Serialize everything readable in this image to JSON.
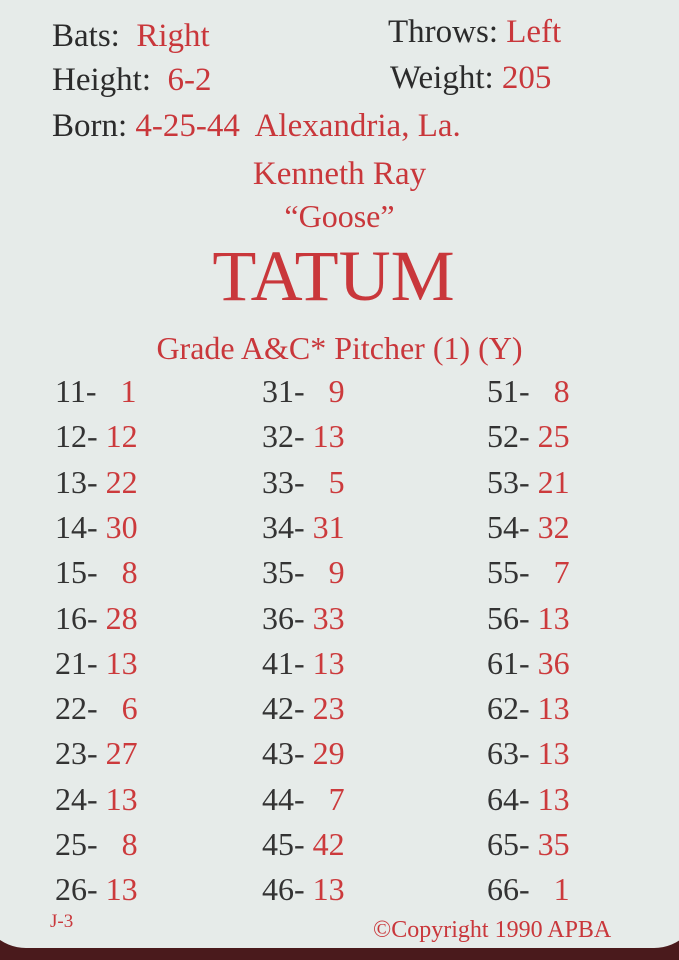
{
  "header": {
    "bats_label": "Bats:",
    "bats": "Right",
    "throws_label": "Throws:",
    "throws": "Left",
    "height_label": "Height:",
    "height": "6-2",
    "weight_label": "Weight:",
    "weight": "205",
    "born_label": "Born:",
    "born_date": "4-25-44",
    "born_place": "Alexandria, La."
  },
  "player": {
    "first_names": "Kenneth Ray",
    "nickname": "“Goose”",
    "last_name": "TATUM",
    "grade": "Grade A&C* Pitcher (1) (Y)"
  },
  "columns": [
    [
      [
        "11-",
        "1"
      ],
      [
        "12-",
        "12"
      ],
      [
        "13-",
        "22"
      ],
      [
        "14-",
        "30"
      ],
      [
        "15-",
        "8"
      ],
      [
        "16-",
        "28"
      ],
      [
        "21-",
        "13"
      ],
      [
        "22-",
        "6"
      ],
      [
        "23-",
        "27"
      ],
      [
        "24-",
        "13"
      ],
      [
        "25-",
        "8"
      ],
      [
        "26-",
        "13"
      ]
    ],
    [
      [
        "31-",
        "9"
      ],
      [
        "32-",
        "13"
      ],
      [
        "33-",
        "5"
      ],
      [
        "34-",
        "31"
      ],
      [
        "35-",
        "9"
      ],
      [
        "36-",
        "33"
      ],
      [
        "41-",
        "13"
      ],
      [
        "42-",
        "23"
      ],
      [
        "43-",
        "29"
      ],
      [
        "44-",
        "7"
      ],
      [
        "45-",
        "42"
      ],
      [
        "46-",
        "13"
      ]
    ],
    [
      [
        "51-",
        "8"
      ],
      [
        "52-",
        "25"
      ],
      [
        "53-",
        "21"
      ],
      [
        "54-",
        "32"
      ],
      [
        "55-",
        "7"
      ],
      [
        "56-",
        "13"
      ],
      [
        "61-",
        "36"
      ],
      [
        "62-",
        "13"
      ],
      [
        "63-",
        "13"
      ],
      [
        "64-",
        "13"
      ],
      [
        "65-",
        "35"
      ],
      [
        "66-",
        "1"
      ]
    ]
  ],
  "footer": {
    "code": "J-3",
    "copyright": "©Copyright 1990 APBA"
  },
  "colors": {
    "ink_red": "#c9373b",
    "ink_black": "#2b2b2b",
    "card": "#e6ebe9",
    "background": "#4a1a1c"
  }
}
